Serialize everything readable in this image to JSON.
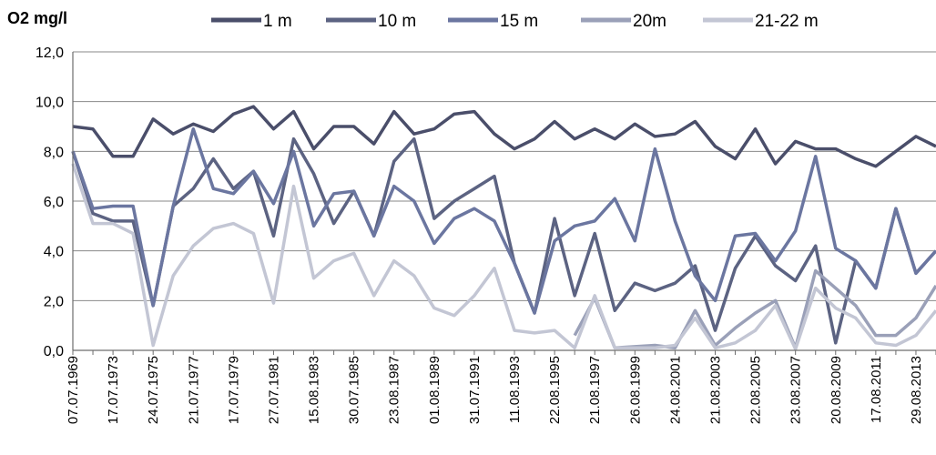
{
  "chart_data": {
    "type": "line",
    "ylabel": "O2 mg/l",
    "ylim": [
      0,
      12
    ],
    "yticks": [
      0,
      2,
      4,
      6,
      8,
      10,
      12
    ],
    "ytick_labels": [
      "0,0",
      "2,0",
      "4,0",
      "6,0",
      "8,0",
      "10,0",
      "12,0"
    ],
    "xtick_labels": [
      "07.07.1969",
      "17.07.1973",
      "24.07.1975",
      "21.07.1977",
      "17.07.1979",
      "27.07.1981",
      "15.08.1983",
      "30.07.1985",
      "23.08.1987",
      "01.08.1989",
      "31.07.1991",
      "11.08.1993",
      "22.08.1995",
      "21.08.1997",
      "26.08.1999",
      "24.08.2001",
      "21.08.2003",
      "22.08.2005",
      "23.08.2007",
      "20.08.2009",
      "17.08.2011",
      "29.08.2013"
    ],
    "grid": true,
    "legend_position": "top",
    "series": [
      {
        "name": "1 m",
        "color": "#4a4e6a",
        "values": [
          9.0,
          8.9,
          7.8,
          7.8,
          9.3,
          8.7,
          9.1,
          8.8,
          9.5,
          9.8,
          8.9,
          9.6,
          8.1,
          9.0,
          9.0,
          8.3,
          9.6,
          8.7,
          8.9,
          9.5,
          9.6,
          8.7,
          8.1,
          8.5,
          9.2,
          8.5,
          8.9,
          8.5,
          9.1,
          8.6,
          8.7,
          9.2,
          8.2,
          7.7,
          8.9,
          7.5,
          8.4,
          8.1,
          8.1,
          7.7,
          7.4,
          8.0,
          8.6,
          8.2
        ]
      },
      {
        "name": "10 m",
        "color": "#5c6382",
        "values": [
          8.0,
          5.5,
          5.2,
          5.2,
          1.8,
          5.8,
          6.5,
          7.7,
          6.5,
          7.2,
          4.6,
          8.5,
          7.1,
          5.1,
          6.4,
          4.6,
          7.6,
          8.5,
          5.3,
          6.0,
          6.5,
          7.0,
          3.5,
          1.5,
          5.3,
          2.2,
          4.7,
          1.6,
          2.7,
          2.4,
          2.7,
          3.4,
          0.8,
          3.3,
          4.6,
          3.4,
          2.8,
          4.2,
          0.3,
          3.6,
          2.5,
          5.7,
          3.1,
          4.0
        ]
      },
      {
        "name": "15 m",
        "color": "#6b76a0",
        "values": [
          8.0,
          5.7,
          5.8,
          5.8,
          1.8,
          5.8,
          8.9,
          6.5,
          6.3,
          7.2,
          5.9,
          8.0,
          5.0,
          6.3,
          6.4,
          4.6,
          6.6,
          6.0,
          4.3,
          5.3,
          5.7,
          5.2,
          3.5,
          1.5,
          4.4,
          5.0,
          5.2,
          6.1,
          4.4,
          8.1,
          5.2,
          3.0,
          2.0,
          4.6,
          4.7,
          3.6,
          4.8,
          7.8,
          4.1,
          3.6,
          2.5,
          5.7,
          3.1,
          4.0
        ]
      },
      {
        "name": "20m",
        "color": "#9aa0b8",
        "values": [
          null,
          null,
          null,
          null,
          null,
          null,
          null,
          null,
          null,
          null,
          null,
          null,
          null,
          null,
          null,
          null,
          null,
          null,
          null,
          null,
          null,
          null,
          null,
          null,
          null,
          0.6,
          2.1,
          0.1,
          0.15,
          0.2,
          0.1,
          1.6,
          0.2,
          0.9,
          1.5,
          2.0,
          0.1,
          3.2,
          2.5,
          1.8,
          0.6,
          0.6,
          1.3,
          2.6
        ]
      },
      {
        "name": "21-22 m",
        "color": "#c3c6d4",
        "values": [
          7.5,
          5.1,
          5.1,
          4.7,
          0.2,
          3.0,
          4.2,
          4.9,
          5.1,
          4.7,
          1.9,
          6.6,
          2.9,
          3.6,
          3.9,
          2.2,
          3.6,
          3.0,
          1.7,
          1.4,
          2.2,
          3.3,
          0.8,
          0.7,
          0.8,
          0.1,
          2.2,
          0.1,
          0.1,
          0.1,
          0.2,
          1.3,
          0.1,
          0.3,
          0.8,
          1.8,
          0.05,
          2.5,
          1.7,
          1.3,
          0.3,
          0.2,
          0.6,
          1.6
        ]
      }
    ]
  }
}
